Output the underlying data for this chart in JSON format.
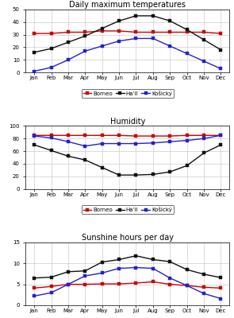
{
  "months": [
    "Jan",
    "Feb",
    "Mar",
    "Apr",
    "May",
    "Jun",
    "Jul",
    "Aug",
    "Sep",
    "Oct",
    "Nov",
    "Dec"
  ],
  "temp": {
    "title": "Daily maximum temperatures",
    "ylim": [
      0,
      50
    ],
    "yticks": [
      0,
      10,
      20,
      30,
      40,
      50
    ],
    "Borneo": [
      31,
      31,
      32,
      32,
      33,
      33,
      32,
      32,
      32,
      32,
      32,
      31
    ],
    "Hail": [
      16,
      19,
      24,
      29,
      35,
      41,
      45,
      45,
      41,
      34,
      26,
      18
    ],
    "Kosicky": [
      1,
      4,
      10,
      17,
      21,
      25,
      27,
      27,
      21,
      15,
      9,
      3
    ]
  },
  "humidity": {
    "title": "Humidity",
    "ylim": [
      0,
      100
    ],
    "yticks": [
      0,
      20,
      40,
      60,
      80,
      100
    ],
    "Borneo": [
      85,
      85,
      85,
      85,
      85,
      85,
      84,
      84,
      84,
      85,
      85,
      85
    ],
    "Hail": [
      70,
      61,
      52,
      46,
      34,
      22,
      22,
      23,
      27,
      37,
      57,
      70
    ],
    "Kosicky": [
      84,
      81,
      75,
      68,
      72,
      72,
      72,
      73,
      75,
      77,
      80,
      85
    ]
  },
  "sunshine": {
    "title": "Sunshine hours per day",
    "ylim": [
      0,
      15
    ],
    "yticks": [
      0,
      5,
      10,
      15
    ],
    "Borneo": [
      4.1,
      4.5,
      5.0,
      5.0,
      5.1,
      5.1,
      5.3,
      5.6,
      5.0,
      4.7,
      4.3,
      4.1
    ],
    "Hail": [
      6.5,
      6.7,
      8.0,
      8.2,
      10.3,
      10.9,
      11.8,
      10.9,
      10.4,
      8.5,
      7.4,
      6.6
    ],
    "Kosicky": [
      2.2,
      3.0,
      5.0,
      7.0,
      7.7,
      8.8,
      9.0,
      8.8,
      6.5,
      4.7,
      2.8,
      1.6
    ]
  },
  "colors": {
    "Borneo": "#cc0000",
    "Hail": "#111111",
    "Kosicky": "#2222cc"
  },
  "legend_labels": [
    "Borneo",
    "Ha’il",
    "Košický"
  ],
  "figsize": [
    2.95,
    4.0
  ],
  "dpi": 100
}
